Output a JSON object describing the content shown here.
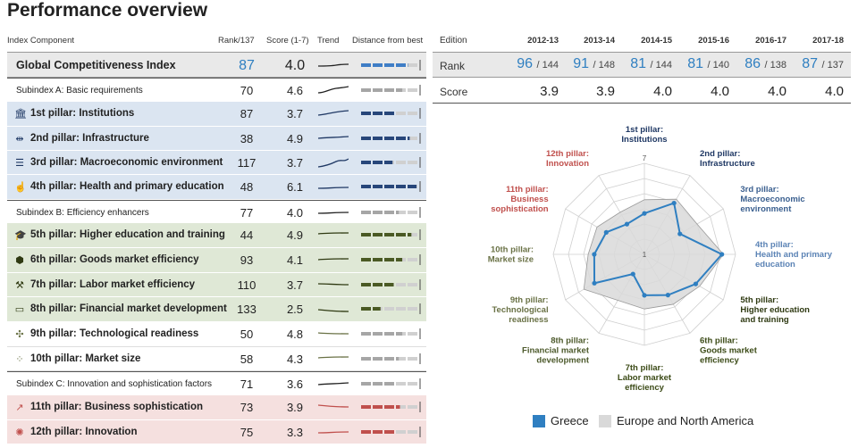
{
  "title": "Performance overview",
  "colors": {
    "blue": "#2f7fc1",
    "bar_blue": "#3f7ec6",
    "bar_navy": "#27467a",
    "bar_green": "#4a5a24",
    "bar_red": "#c0504d",
    "bar_grey": "#a6a6a6"
  },
  "table": {
    "headers": {
      "component": "Index Component",
      "rank": "Rank/137",
      "score": "Score (1-7)",
      "trend": "Trend",
      "distance": "Distance from best"
    },
    "rows": [
      {
        "label": "Global Competitiveness Index",
        "rank": "87",
        "score": "4.0",
        "kind": "gci",
        "distance": 0.82,
        "icon": ""
      },
      {
        "label": "Subindex A: Basic requirements",
        "rank": "70",
        "score": "4.6",
        "kind": "sub",
        "distance": 0.72,
        "icon": ""
      },
      {
        "label": "1st pillar: Institutions",
        "rank": "87",
        "score": "3.7",
        "kind": "blue",
        "distance": 0.58,
        "icon": "institutions-icon",
        "glyph": "🏛"
      },
      {
        "label": "2nd pillar: Infrastructure",
        "rank": "38",
        "score": "4.9",
        "kind": "blue",
        "distance": 0.85,
        "icon": "infrastructure-icon",
        "glyph": "⇹"
      },
      {
        "label": "3rd pillar: Macroeconomic environment",
        "rank": "117",
        "score": "3.7",
        "kind": "blue",
        "distance": 0.55,
        "icon": "macroeconomic-icon",
        "glyph": "☰"
      },
      {
        "label": "4th pillar: Health and primary education",
        "rank": "48",
        "score": "6.1",
        "kind": "blue",
        "distance": 0.97,
        "icon": "health-icon",
        "glyph": "☝"
      },
      {
        "label": "Subindex B: Efficiency enhancers",
        "rank": "77",
        "score": "4.0",
        "kind": "sub",
        "distance": 0.66,
        "icon": ""
      },
      {
        "label": "5th pillar: Higher education and training",
        "rank": "44",
        "score": "4.9",
        "kind": "green",
        "distance": 0.88,
        "icon": "education-icon",
        "glyph": "🎓"
      },
      {
        "label": "6th pillar: Goods market efficiency",
        "rank": "93",
        "score": "4.1",
        "kind": "green",
        "distance": 0.72,
        "icon": "goods-market-icon",
        "glyph": "⬢"
      },
      {
        "label": "7th pillar: Labor market efficiency",
        "rank": "110",
        "score": "3.7",
        "kind": "green",
        "distance": 0.57,
        "icon": "labor-market-icon",
        "glyph": "⚒"
      },
      {
        "label": "8th pillar: Financial market development",
        "rank": "133",
        "score": "2.5",
        "kind": "green",
        "distance": 0.34,
        "icon": "financial-market-icon",
        "glyph": "▭"
      },
      {
        "label": "9th pillar: Technological readiness",
        "rank": "50",
        "score": "4.8",
        "kind": "white",
        "distance": 0.72,
        "icon": "technology-icon",
        "glyph": "✣"
      },
      {
        "label": "10th pillar: Market size",
        "rank": "58",
        "score": "4.3",
        "kind": "white",
        "distance": 0.66,
        "icon": "market-size-icon",
        "glyph": "⁘"
      },
      {
        "label": "Subindex C: Innovation and sophistication factors",
        "rank": "71",
        "score": "3.6",
        "kind": "sub",
        "distance": 0.6,
        "icon": ""
      },
      {
        "label": "11th pillar: Business sophistication",
        "rank": "73",
        "score": "3.9",
        "kind": "red",
        "distance": 0.68,
        "icon": "business-icon",
        "glyph": "↗"
      },
      {
        "label": "12th pillar: Innovation",
        "rank": "75",
        "score": "3.3",
        "kind": "red",
        "distance": 0.58,
        "icon": "innovation-icon",
        "glyph": "✺"
      }
    ]
  },
  "edition": {
    "label": "Edition",
    "rank_label": "Rank",
    "score_label": "Score",
    "years": [
      "2012-13",
      "2013-14",
      "2014-15",
      "2015-16",
      "2016-17",
      "2017-18"
    ],
    "ranks": [
      "96",
      "91",
      "81",
      "81",
      "86",
      "87"
    ],
    "rank_totals": [
      "/ 144",
      "/ 148",
      "/ 144",
      "/ 140",
      "/ 138",
      "/ 137"
    ],
    "scores": [
      "3.9",
      "3.9",
      "4.0",
      "4.0",
      "4.0",
      "4.0"
    ]
  },
  "chart_data": {
    "type": "radar",
    "title": "",
    "range": [
      1,
      7
    ],
    "tick_labels": [
      "1",
      "7"
    ],
    "axes": [
      {
        "label": "1st pillar: Institutions",
        "color": "#1f3864"
      },
      {
        "label": "2nd pillar: Infrastructure",
        "color": "#1f3864"
      },
      {
        "label": "3rd pillar: Macroeconomic environment",
        "color": "#3a5f8f"
      },
      {
        "label": "4th pillar: Health and primary education",
        "color": "#5b83b5"
      },
      {
        "label": "5th pillar: Higher education and training",
        "color": "#2f3a12"
      },
      {
        "label": "6th pillar: Goods market efficiency",
        "color": "#3b4a16"
      },
      {
        "label": "7th pillar: Labor market efficiency",
        "color": "#3b4a16"
      },
      {
        "label": "8th pillar: Financial market development",
        "color": "#4d5a2c"
      },
      {
        "label": "9th pillar: Technological readiness",
        "color": "#6a7246"
      },
      {
        "label": "10th pillar: Market size",
        "color": "#6a7246"
      },
      {
        "label": "11th pillar: Business sophistication",
        "color": "#c0504d"
      },
      {
        "label": "12th pillar: Innovation",
        "color": "#c0504d"
      }
    ],
    "axis_label_lines": [
      [
        "1st pillar:",
        "Institutions"
      ],
      [
        "2nd pillar:",
        "Infrastructure"
      ],
      [
        "3rd pillar:",
        "Macroeconomic",
        "environment"
      ],
      [
        "4th pillar:",
        "Health and primary",
        "education"
      ],
      [
        "5th pillar:",
        "Higher education",
        "and training"
      ],
      [
        "6th pillar:",
        "Goods market",
        "efficiency"
      ],
      [
        "7th pillar:",
        "Labor market",
        "efficiency"
      ],
      [
        "8th pillar:",
        "Financial market",
        "development"
      ],
      [
        "9th pillar:",
        "Technological",
        "readiness"
      ],
      [
        "10th pillar:",
        "Market size"
      ],
      [
        "11th pillar:",
        "Business",
        "sophistication"
      ],
      [
        "12th pillar:",
        "Innovation"
      ]
    ],
    "series": [
      {
        "name": "Greece",
        "color": "#2f7fc1",
        "values": [
          3.7,
          4.9,
          3.7,
          6.1,
          4.9,
          4.1,
          3.7,
          2.5,
          4.8,
          4.3,
          3.9,
          3.3
        ]
      },
      {
        "name": "Europe and North America",
        "color": "#d9d9d9",
        "values": [
          4.6,
          5.2,
          5.0,
          6.2,
          5.2,
          4.8,
          4.6,
          4.5,
          5.6,
          4.7,
          4.6,
          4.2
        ]
      }
    ],
    "legend_position": "bottom"
  }
}
